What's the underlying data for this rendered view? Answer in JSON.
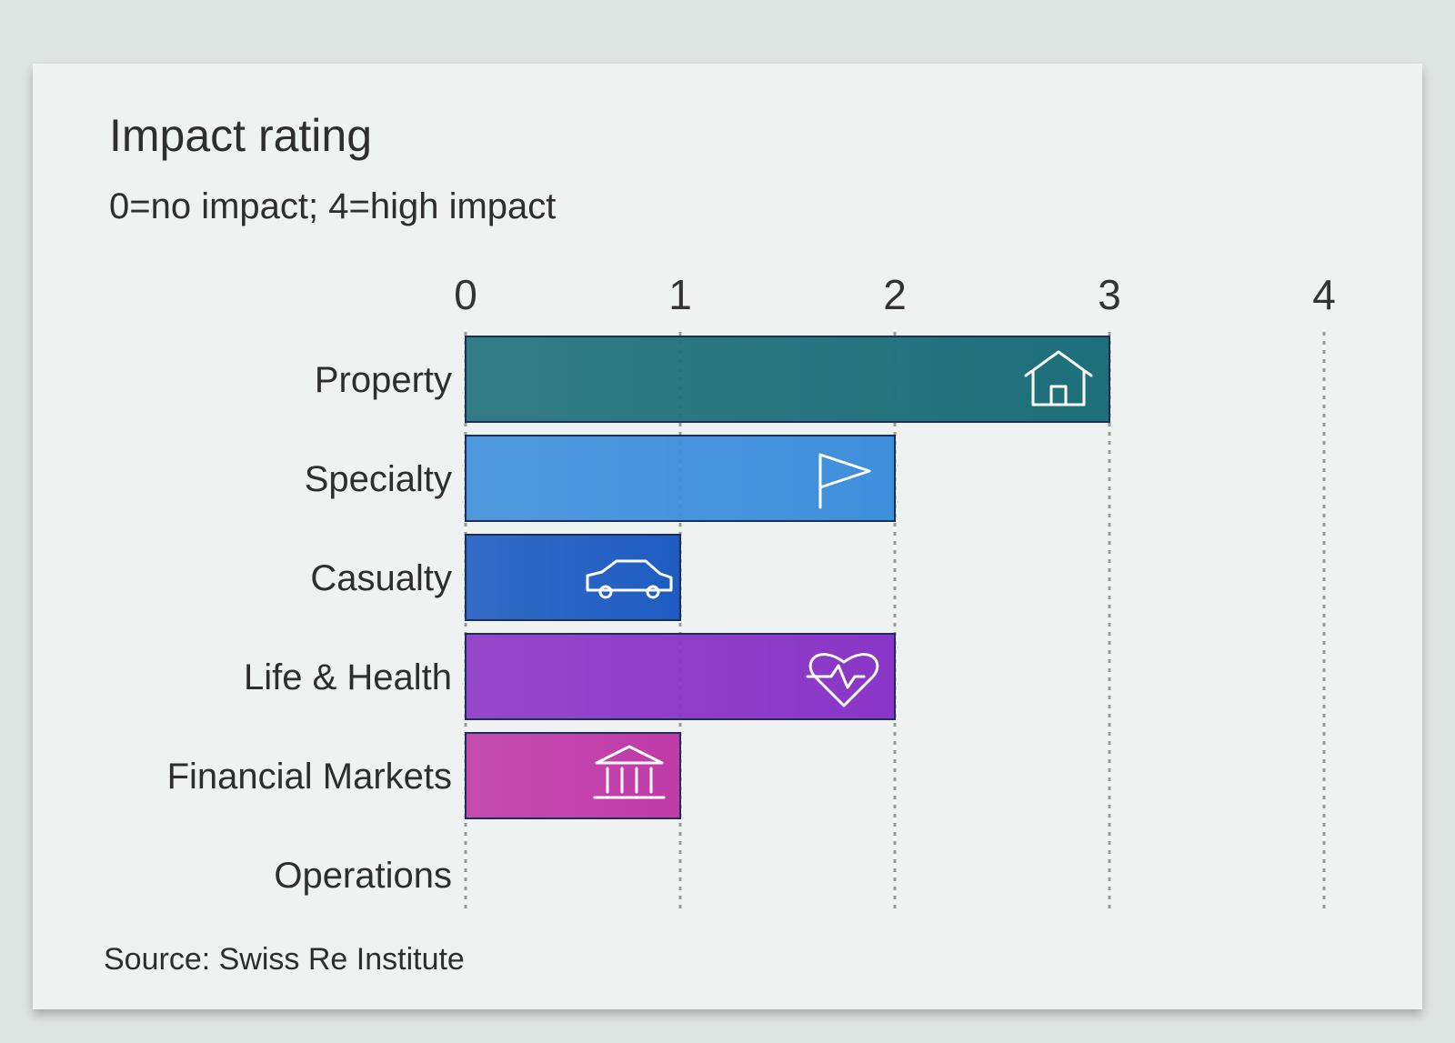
{
  "chart_data": {
    "type": "bar",
    "orientation": "horizontal",
    "title": "Impact rating",
    "subtitle": "0=no impact; 4=high impact",
    "source": "Source: Swiss Re Institute",
    "categories": [
      "Property",
      "Specialty",
      "Casualty",
      "Life & Health",
      "Financial Markets",
      "Operations"
    ],
    "values": [
      3,
      2,
      1,
      2,
      1,
      0
    ],
    "xlim": [
      0,
      4
    ],
    "xticks": [
      "0",
      "1",
      "2",
      "3",
      "4"
    ],
    "xaxis_position": "top",
    "grid": "dashed vertical lines at ticks",
    "bar_colors": [
      "#1d6f7a",
      "#3e8fdc",
      "#1e5cc2",
      "#8a35c7",
      "#c03aa8",
      "#888888"
    ],
    "bar_icons": [
      "house-icon",
      "flag-icon",
      "car-icon",
      "heart-pulse-icon",
      "bank-icon",
      ""
    ]
  }
}
